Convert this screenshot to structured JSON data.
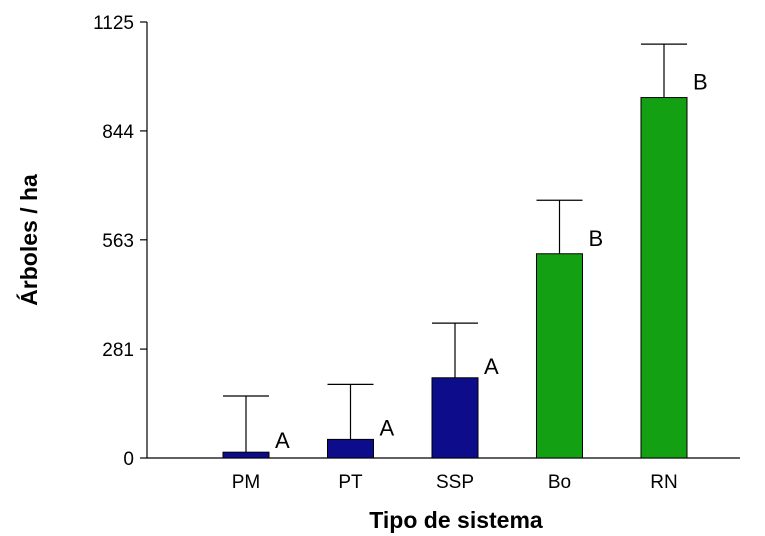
{
  "chart_data": {
    "type": "bar",
    "title": "",
    "xlabel": "Tipo de sistema",
    "ylabel": "Árboles / ha",
    "ylim": [
      0,
      1125
    ],
    "yticks": [
      0,
      281,
      563,
      844,
      1125
    ],
    "grid": false,
    "categories": [
      "PM",
      "PT",
      "SSP",
      "Bo",
      "RN"
    ],
    "values": [
      15,
      48,
      207,
      527,
      930
    ],
    "error_upper": [
      160,
      190,
      348,
      665,
      1068
    ],
    "letters": [
      "A",
      "A",
      "A",
      "B",
      "B"
    ],
    "colors": [
      "#0d0d8c",
      "#0d0d8c",
      "#0d0d8c",
      "#13a113",
      "#13a113"
    ]
  }
}
